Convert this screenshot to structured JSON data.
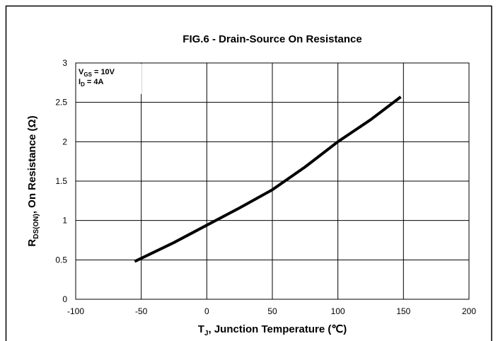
{
  "chart_data": {
    "type": "line",
    "title": "FIG.6 - Drain-Source On Resistance",
    "xlabel": [
      "T",
      "J",
      ", Junction Temperature (℃)"
    ],
    "ylabel": [
      "R",
      "DS(ON)",
      ", On Resistance (Ω)"
    ],
    "annotations": [
      [
        "V",
        "GS",
        " = 10V"
      ],
      [
        "I",
        "D",
        " = 4A"
      ]
    ],
    "x": [
      -55,
      -25,
      0,
      25,
      50,
      75,
      100,
      125,
      148
    ],
    "series": [
      {
        "name": null,
        "color": "#000000",
        "values": [
          0.48,
          0.72,
          0.94,
          1.16,
          1.39,
          1.68,
          2.0,
          2.28,
          2.57
        ]
      }
    ],
    "xlim": [
      -100,
      200
    ],
    "xticks": [
      -100,
      -50,
      0,
      50,
      100,
      150,
      200
    ],
    "ylim": [
      0,
      3
    ],
    "yticks": [
      0,
      0.5,
      1,
      1.5,
      2,
      2.5,
      3
    ],
    "grid": true
  }
}
